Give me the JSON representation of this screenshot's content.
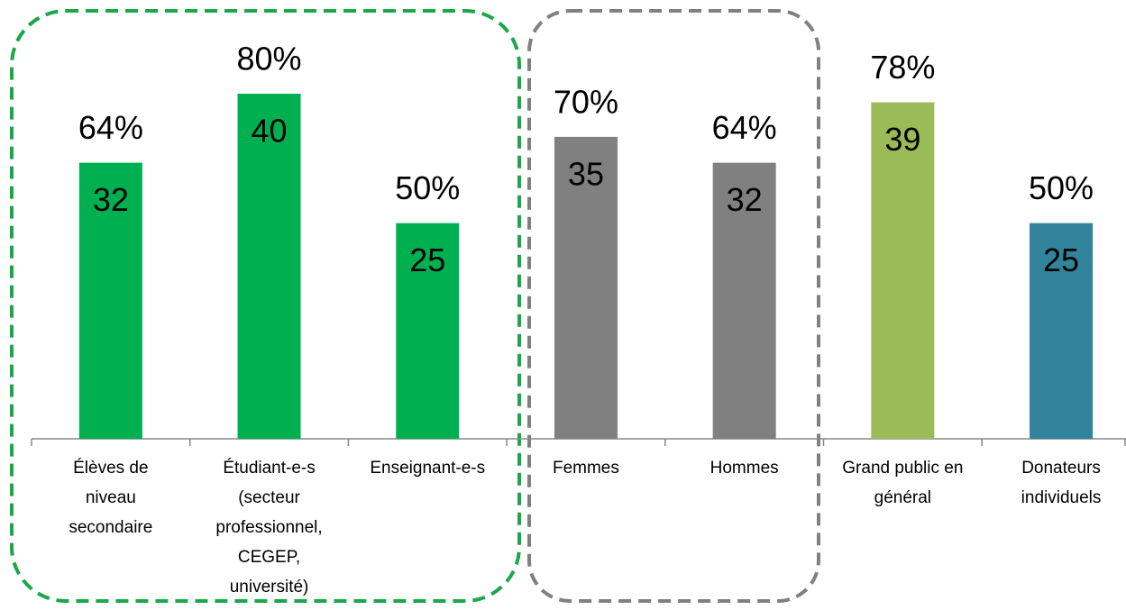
{
  "chart_data": {
    "type": "bar",
    "categories": [
      [
        "Élèves de",
        "niveau",
        "secondaire"
      ],
      [
        "Étudiant-e-s",
        "(secteur",
        "professionnel,",
        "CEGEP,",
        "université)"
      ],
      [
        "Enseignant-e-s"
      ],
      [
        "Femmes"
      ],
      [
        "Hommes"
      ],
      [
        "Grand public en",
        "général"
      ],
      [
        "Donateurs",
        "individuels"
      ]
    ],
    "values": [
      32,
      40,
      25,
      35,
      32,
      39,
      25
    ],
    "percent_labels": [
      "64%",
      "80%",
      "50%",
      "70%",
      "64%",
      "78%",
      "50%"
    ],
    "colors": [
      "#00b050",
      "#00b050",
      "#00b050",
      "#808080",
      "#808080",
      "#9bbb59",
      "#31849b"
    ]
  }
}
